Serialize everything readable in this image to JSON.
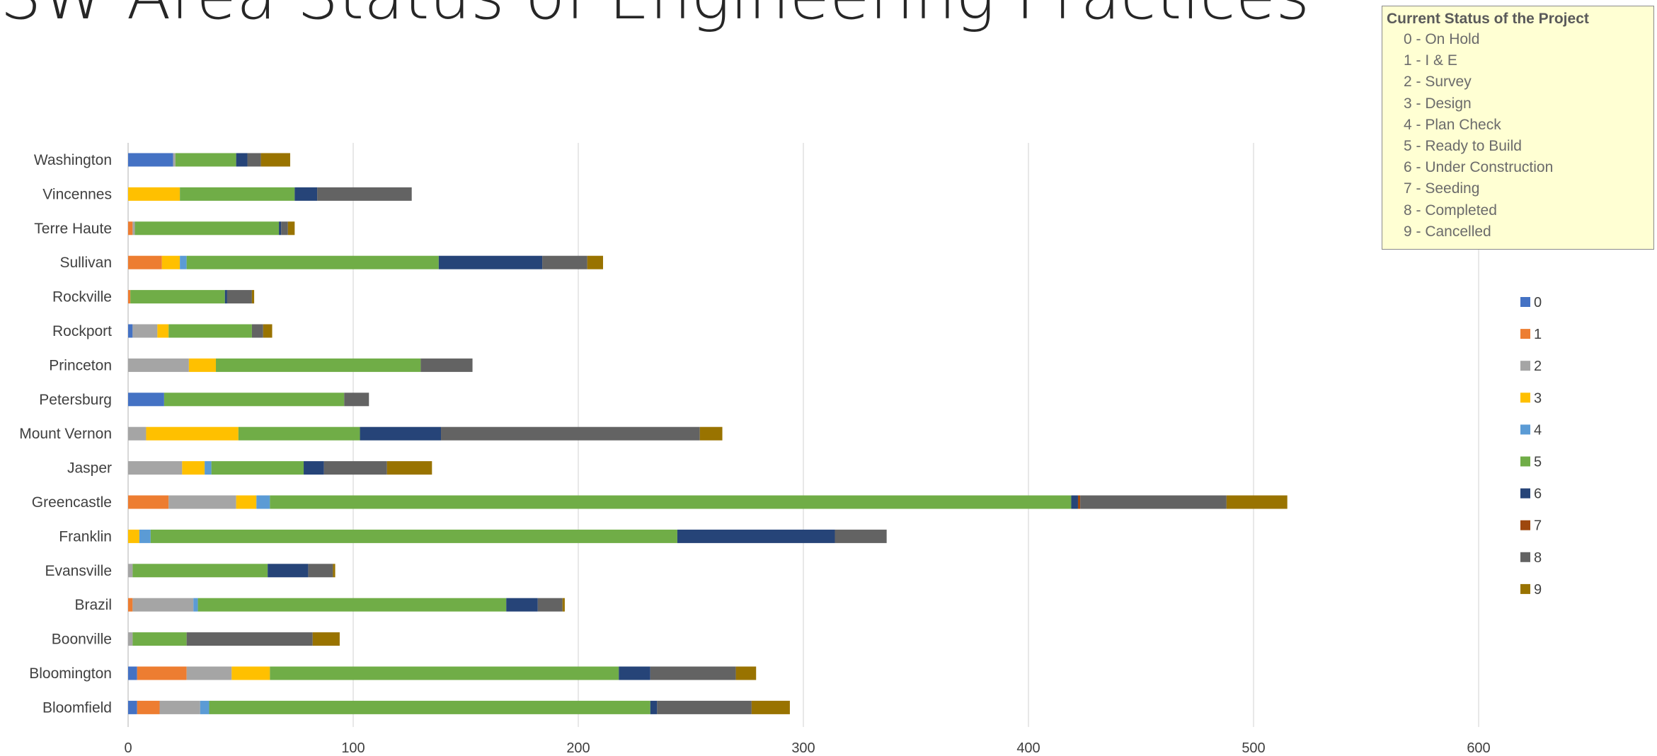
{
  "slide": {
    "title": "SW Area Status of Engineering Practices"
  },
  "status_box": {
    "title": "Current Status of the Project",
    "items": [
      "0 - On Hold",
      "1 - I & E",
      "2 - Survey",
      "3 - Design",
      "4 - Plan Check",
      "5 - Ready to Build",
      "6 - Under Construction",
      "7 - Seeding",
      "8 - Completed",
      "9 - Cancelled"
    ]
  },
  "chart_data": {
    "type": "bar",
    "orientation": "horizontal",
    "stacked": true,
    "title": "",
    "xlabel": "",
    "ylabel": "",
    "xlim": [
      0,
      600
    ],
    "xticks": [
      0,
      100,
      200,
      300,
      400,
      500,
      600
    ],
    "grid": true,
    "legend_position": "right",
    "categories": [
      "Washington",
      "Vincennes",
      "Terre Haute",
      "Sullivan",
      "Rockville",
      "Rockport",
      "Princeton",
      "Petersburg",
      "Mount Vernon",
      "Jasper",
      "Greencastle",
      "Franklin",
      "Evansville",
      "Brazil",
      "Boonville",
      "Bloomington",
      "Bloomfield"
    ],
    "series": [
      {
        "name": "0",
        "color": "#4472c4",
        "values": [
          20,
          0,
          0,
          0,
          0,
          2,
          0,
          16,
          0,
          0,
          0,
          0,
          0,
          0,
          0,
          4,
          4
        ]
      },
      {
        "name": "1",
        "color": "#ed7d31",
        "values": [
          0,
          0,
          2,
          15,
          1,
          0,
          0,
          0,
          0,
          0,
          18,
          0,
          0,
          2,
          0,
          22,
          10
        ]
      },
      {
        "name": "2",
        "color": "#a5a5a5",
        "values": [
          1,
          0,
          1,
          0,
          0,
          11,
          27,
          0,
          8,
          24,
          30,
          0,
          2,
          27,
          2,
          20,
          18
        ]
      },
      {
        "name": "3",
        "color": "#ffc000",
        "values": [
          0,
          23,
          0,
          8,
          0,
          5,
          12,
          0,
          41,
          10,
          9,
          5,
          0,
          0,
          0,
          17,
          0
        ]
      },
      {
        "name": "4",
        "color": "#5b9bd5",
        "values": [
          0,
          0,
          0,
          3,
          0,
          0,
          0,
          0,
          0,
          3,
          6,
          5,
          0,
          2,
          0,
          0,
          4
        ]
      },
      {
        "name": "5",
        "color": "#70ad47",
        "values": [
          27,
          51,
          64,
          112,
          42,
          37,
          91,
          80,
          54,
          41,
          356,
          234,
          60,
          137,
          24,
          155,
          196
        ]
      },
      {
        "name": "6",
        "color": "#264478",
        "values": [
          5,
          10,
          1,
          46,
          1,
          0,
          0,
          0,
          36,
          9,
          3,
          70,
          18,
          14,
          0,
          14,
          3
        ]
      },
      {
        "name": "7",
        "color": "#9e480e",
        "values": [
          0,
          0,
          0,
          0,
          0,
          0,
          0,
          0,
          0,
          0,
          1,
          0,
          0,
          0,
          0,
          0,
          0
        ]
      },
      {
        "name": "8",
        "color": "#636363",
        "values": [
          6,
          42,
          3,
          20,
          11,
          5,
          23,
          11,
          115,
          28,
          65,
          23,
          11,
          11,
          56,
          38,
          42
        ]
      },
      {
        "name": "9",
        "color": "#997300",
        "values": [
          13,
          0,
          3,
          7,
          1,
          4,
          0,
          0,
          10,
          20,
          27,
          0,
          1,
          1,
          12,
          9,
          17
        ]
      }
    ]
  }
}
